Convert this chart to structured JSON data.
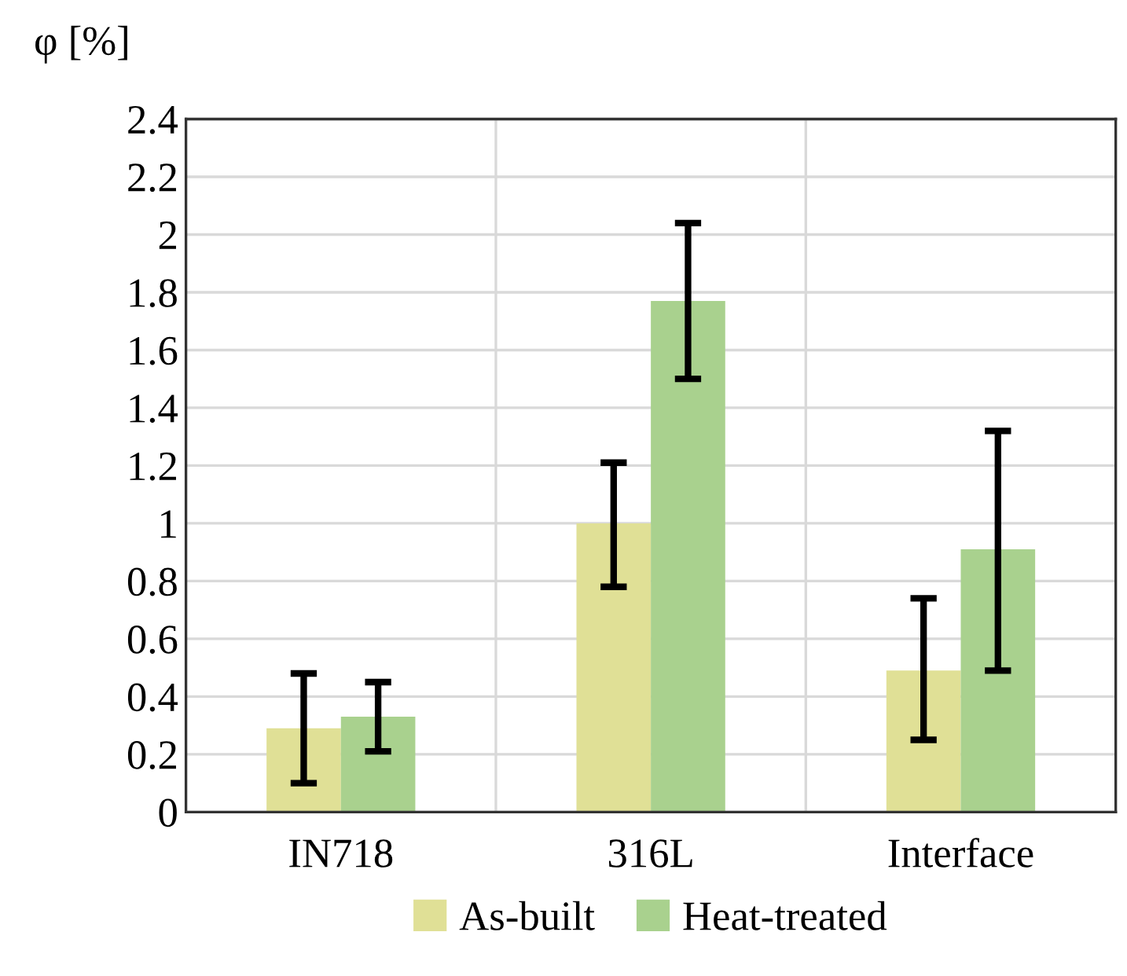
{
  "chart_data": {
    "type": "bar",
    "ylabel": "φ [%]",
    "categories": [
      "IN718",
      "316L",
      "Interface"
    ],
    "series": [
      {
        "name": "As-built",
        "color": "#e0e096",
        "values": [
          0.29,
          1.0,
          0.49
        ],
        "errors": [
          [
            0.1,
            0.48
          ],
          [
            0.78,
            1.21
          ],
          [
            0.25,
            0.74
          ]
        ]
      },
      {
        "name": "Heat-treated",
        "color": "#a9d18e",
        "values": [
          0.33,
          1.77,
          0.91
        ],
        "errors": [
          [
            0.21,
            0.45
          ],
          [
            1.5,
            2.04
          ],
          [
            0.49,
            1.32
          ]
        ]
      }
    ],
    "ylim": [
      0,
      2.4
    ],
    "yticks": [
      0,
      0.2,
      0.4,
      0.6,
      0.8,
      1,
      1.2,
      1.4,
      1.6,
      1.8,
      2,
      2.2,
      2.4
    ],
    "grid": true,
    "legend": "bottom"
  }
}
